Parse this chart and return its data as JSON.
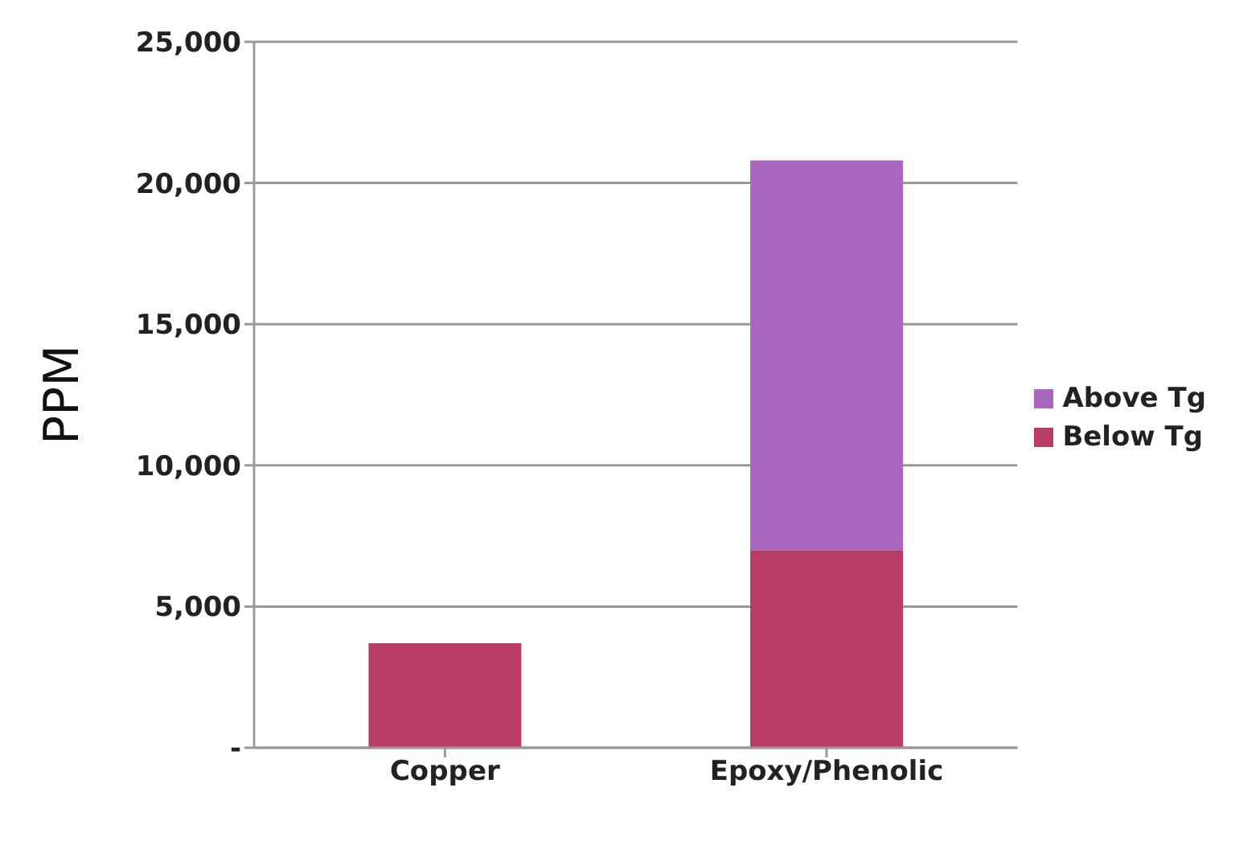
{
  "chart_data": {
    "type": "bar",
    "stacked": true,
    "ylabel": "PPM",
    "categories": [
      "Copper",
      "Epoxy/Phenolic"
    ],
    "series": [
      {
        "name": "Below Tg",
        "color": "#b83c64",
        "values": [
          3700,
          7000
        ]
      },
      {
        "name": "Above Tg",
        "color": "#a966bf",
        "values": [
          null,
          13800
        ]
      }
    ],
    "ylim": [
      0,
      25000
    ],
    "yticks": [
      {
        "value": 0,
        "label": "-"
      },
      {
        "value": 5000,
        "label": "5,000"
      },
      {
        "value": 10000,
        "label": "10,000"
      },
      {
        "value": 15000,
        "label": "15,000"
      },
      {
        "value": 20000,
        "label": "20,000"
      },
      {
        "value": 25000,
        "label": "25,000"
      }
    ],
    "grid": "y",
    "legend": "right"
  }
}
